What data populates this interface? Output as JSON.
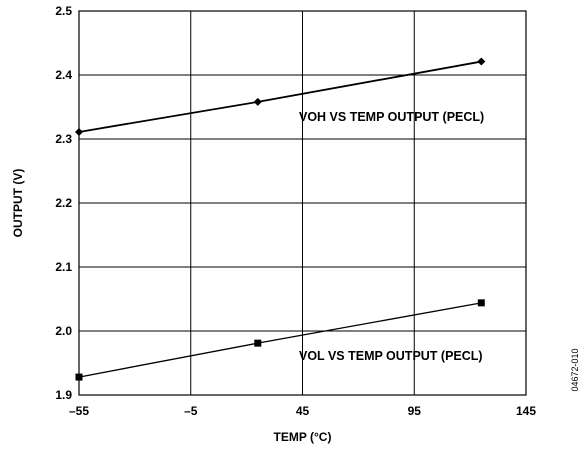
{
  "chart_data": {
    "type": "line",
    "xlabel": "TEMP (°C)",
    "ylabel": "OUTPUT (V)",
    "xlim": [
      -55,
      145
    ],
    "ylim": [
      1.9,
      2.5
    ],
    "xticks": [
      -55,
      -5,
      45,
      95,
      145
    ],
    "xtick_labels": [
      "–55",
      "–5",
      "45",
      "95",
      "145"
    ],
    "yticks": [
      1.9,
      2.0,
      2.1,
      2.2,
      2.3,
      2.4,
      2.5
    ],
    "ytick_labels": [
      "1.9",
      "2.0",
      "2.1",
      "2.2",
      "2.3",
      "2.4",
      "2.5"
    ],
    "grid": true,
    "series": [
      {
        "name": "VOH VS TEMP OUTPUT (PECL)",
        "marker": "diamond",
        "x": [
          -55,
          25,
          125
        ],
        "y": [
          2.311,
          2.358,
          2.421
        ]
      },
      {
        "name": "VOL VS TEMP OUTPUT (PECL)",
        "marker": "square",
        "x": [
          -55,
          25,
          125
        ],
        "y": [
          1.928,
          1.981,
          2.044
        ]
      }
    ],
    "annotations": [
      "VOH VS TEMP OUTPUT (PECL)",
      "VOL VS TEMP OUTPUT (PECL)"
    ],
    "figure_code": "04672-010"
  }
}
